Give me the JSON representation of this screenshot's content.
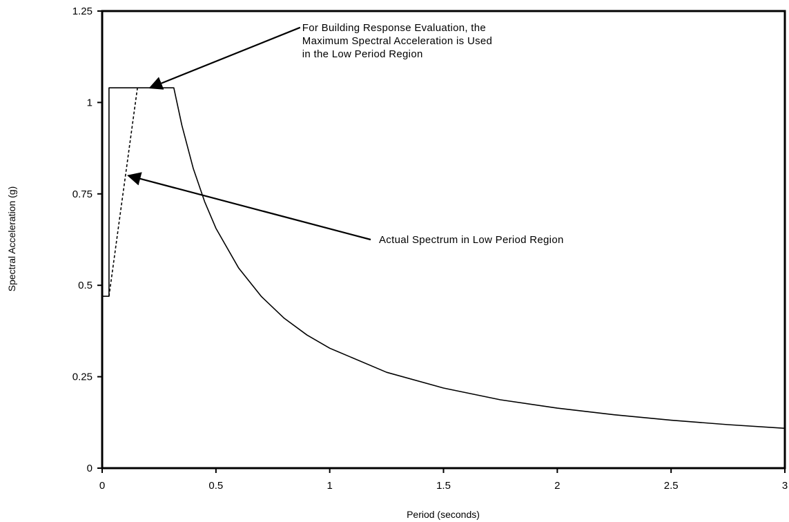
{
  "chart_data": {
    "type": "line",
    "xlabel": "Period (seconds)",
    "ylabel": "Spectral Acceleration (g)",
    "xlim": [
      0,
      3
    ],
    "ylim": [
      0,
      1.25
    ],
    "x_ticks": [
      0,
      0.5,
      1,
      1.5,
      2,
      2.5,
      3
    ],
    "x_tick_labels": [
      "0",
      "0.5",
      "1",
      "1.5",
      "2",
      "2.5",
      "3"
    ],
    "y_ticks": [
      0,
      0.25,
      0.5,
      0.75,
      1,
      1.25
    ],
    "y_tick_labels": [
      "0",
      "0.25",
      "0.5",
      "0.75",
      "1",
      "1.25"
    ],
    "grid": false,
    "series": [
      {
        "style": "solid",
        "x": [
          0,
          0.03,
          0.03,
          0.315,
          0.35,
          0.4,
          0.45,
          0.5,
          0.6,
          0.7,
          0.8,
          0.9,
          1.0,
          1.25,
          1.5,
          1.75,
          2.0,
          2.25,
          2.5,
          2.75,
          3.0
        ],
        "y": [
          0.47,
          0.47,
          1.04,
          1.04,
          0.938,
          0.82,
          0.729,
          0.656,
          0.547,
          0.469,
          0.41,
          0.364,
          0.328,
          0.262,
          0.219,
          0.187,
          0.164,
          0.146,
          0.131,
          0.119,
          0.109
        ]
      },
      {
        "style": "dashed",
        "x": [
          0.03,
          0.155
        ],
        "y": [
          0.47,
          1.04
        ]
      }
    ],
    "annotations": [
      {
        "lines": [
          "For Building Response Evaluation, the",
          "Maximum Spectral Acceleration is Used",
          "in the Low Period Region"
        ],
        "arrow_from": [
          0.87,
          1.205
        ],
        "arrow_to": [
          0.21,
          1.04
        ]
      },
      {
        "lines": [
          "Actual Spectrum in Low Period Region"
        ],
        "arrow_from": [
          1.18,
          0.625
        ],
        "arrow_to": [
          0.115,
          0.8
        ]
      }
    ]
  }
}
